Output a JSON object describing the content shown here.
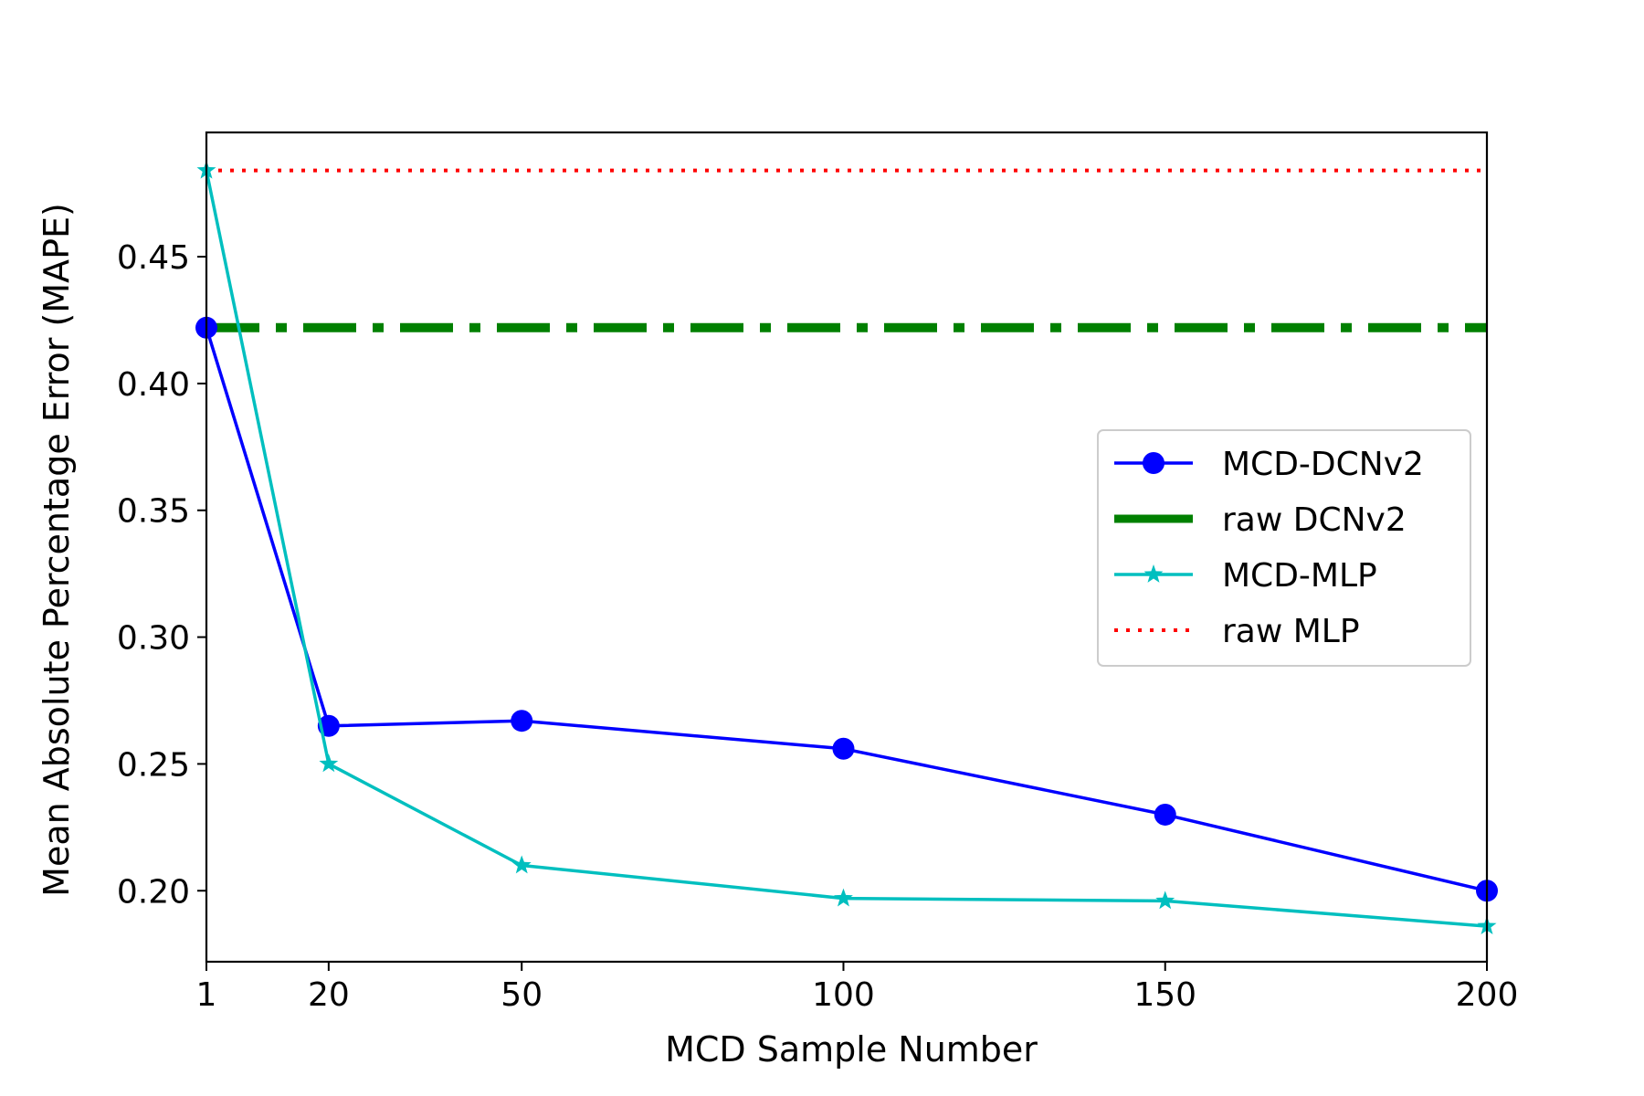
{
  "chart_data": {
    "type": "line",
    "title": "",
    "xlabel": "MCD Sample Number",
    "ylabel": "Mean Absolute Percentage Error (MAPE)",
    "xlim": [
      1,
      200
    ],
    "ylim": [
      0.172,
      0.499
    ],
    "xticks": [
      1,
      20,
      50,
      100,
      150,
      200
    ],
    "xtick_labels": [
      "1",
      "20",
      "50",
      "100",
      "150",
      "200"
    ],
    "yticks": [
      0.2,
      0.25,
      0.3,
      0.35,
      0.4,
      0.45
    ],
    "ytick_labels": [
      "0.20",
      "0.25",
      "0.30",
      "0.35",
      "0.40",
      "0.45"
    ],
    "grid": false,
    "legend_position": "center-right",
    "series": [
      {
        "name": "MCD-DCNv2",
        "kind": "line-markers",
        "marker": "circle",
        "color": "#0000ff",
        "x": [
          1,
          20,
          50,
          100,
          150,
          200
        ],
        "values": [
          0.422,
          0.265,
          0.267,
          0.256,
          0.23,
          0.2
        ]
      },
      {
        "name": "raw DCNv2",
        "kind": "hline",
        "style": "dashdot",
        "color": "#008000",
        "value": 0.422
      },
      {
        "name": "MCD-MLP",
        "kind": "line-markers",
        "marker": "star",
        "color": "#00bfbf",
        "x": [
          1,
          20,
          50,
          100,
          150,
          200
        ],
        "values": [
          0.484,
          0.25,
          0.21,
          0.197,
          0.196,
          0.186
        ]
      },
      {
        "name": "raw MLP",
        "kind": "hline",
        "style": "dotted",
        "color": "#ff0000",
        "value": 0.484
      }
    ]
  }
}
